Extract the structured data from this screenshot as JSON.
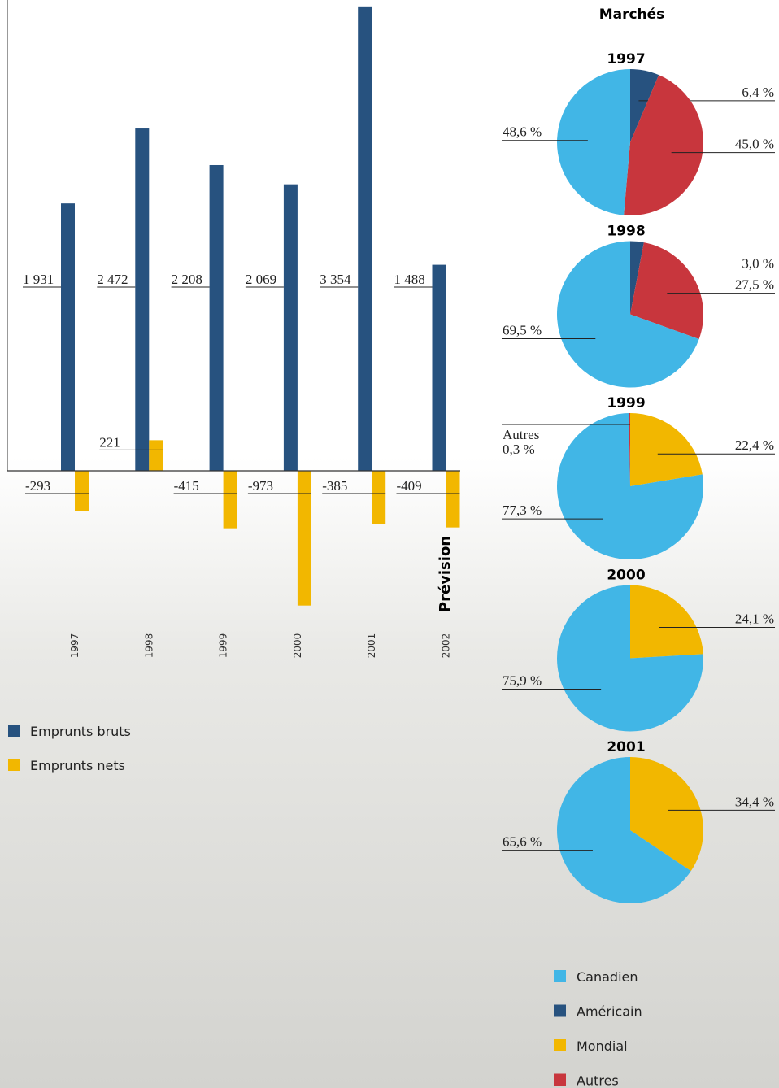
{
  "chart_data": [
    {
      "type": "bar",
      "annotation": "Prévision",
      "categories": [
        "1997",
        "1998",
        "1999",
        "2000",
        "2001",
        "2002"
      ],
      "series": [
        {
          "name": "Emprunts bruts",
          "color": "#27527f",
          "values": [
            1931,
            2472,
            2208,
            2069,
            3354,
            1488
          ],
          "value_labels": [
            "1 931",
            "2 472",
            "2 208",
            "2 069",
            "3 354",
            "1 488"
          ]
        },
        {
          "name": "Emprunts nets",
          "color": "#f2b700",
          "values": [
            -293,
            221,
            -415,
            -973,
            -385,
            -409
          ],
          "value_labels": [
            "-293",
            "221",
            "-415",
            "-973",
            "-385",
            "-409"
          ]
        }
      ],
      "ylim": [
        -1500,
        3400
      ]
    },
    {
      "type": "pie",
      "title": "1997",
      "categories": [
        "Américain",
        "Autres",
        "Canadien"
      ],
      "values": [
        6.4,
        45.0,
        48.6
      ],
      "value_labels": [
        "6,4 %",
        "45,0 %",
        "48,6 %"
      ]
    },
    {
      "type": "pie",
      "title": "1998",
      "categories": [
        "Américain",
        "Autres",
        "Canadien"
      ],
      "values": [
        3.0,
        27.5,
        69.5
      ],
      "value_labels": [
        "3,0 %",
        "27,5 %",
        "69,5 %"
      ]
    },
    {
      "type": "pie",
      "title": "1999",
      "categories": [
        "Mondial",
        "Canadien",
        "Autres"
      ],
      "values": [
        22.4,
        77.3,
        0.3
      ],
      "value_labels": [
        "22,4 %",
        "77,3 %",
        "0,3 %"
      ],
      "annotation": "Autres"
    },
    {
      "type": "pie",
      "title": "2000",
      "categories": [
        "Mondial",
        "Canadien"
      ],
      "values": [
        24.1,
        75.9
      ],
      "value_labels": [
        "24,1 %",
        "75,9 %"
      ]
    },
    {
      "type": "pie",
      "title": "2001",
      "categories": [
        "Mondial",
        "Canadien"
      ],
      "values": [
        34.4,
        65.6
      ],
      "value_labels": [
        "34,4 %",
        "65,6 %"
      ]
    }
  ],
  "markets": {
    "title": "Marchés",
    "legend": [
      {
        "name": "Canadien",
        "color": "#41b6e6"
      },
      {
        "name": "Américain",
        "color": "#27527f"
      },
      {
        "name": "Mondial",
        "color": "#f2b700"
      },
      {
        "name": "Autres",
        "color": "#c8363d"
      }
    ]
  }
}
